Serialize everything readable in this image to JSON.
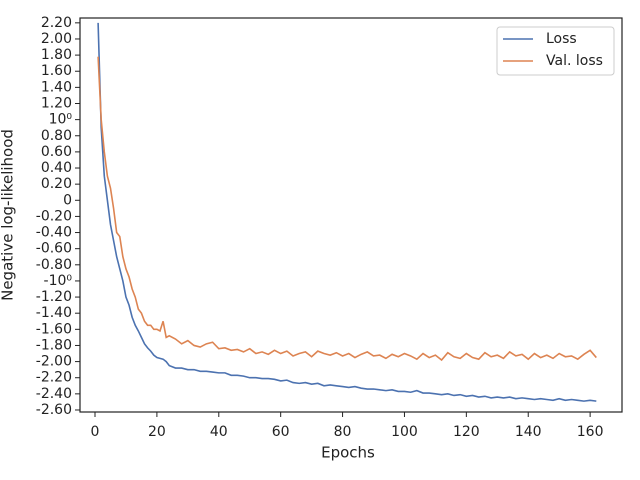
{
  "chart_data": {
    "type": "line",
    "xlabel": "Epochs",
    "ylabel": "Negative log-likelihood",
    "x": [
      1,
      2,
      3,
      4,
      5,
      6,
      7,
      8,
      9,
      10,
      11,
      12,
      13,
      14,
      15,
      16,
      17,
      18,
      19,
      20,
      21,
      22,
      23,
      24,
      26,
      28,
      30,
      32,
      34,
      36,
      38,
      40,
      42,
      44,
      46,
      48,
      50,
      52,
      54,
      56,
      58,
      60,
      62,
      64,
      66,
      68,
      70,
      72,
      74,
      76,
      78,
      80,
      82,
      84,
      86,
      88,
      90,
      92,
      94,
      96,
      98,
      100,
      102,
      104,
      106,
      108,
      110,
      112,
      114,
      116,
      118,
      120,
      122,
      124,
      126,
      128,
      130,
      132,
      134,
      136,
      138,
      140,
      142,
      144,
      146,
      148,
      150,
      152,
      154,
      156,
      158,
      160,
      162
    ],
    "series": [
      {
        "name": "Loss",
        "color": "#4c72b0",
        "values": [
          2.2,
          0.9,
          0.3,
          0.0,
          -0.3,
          -0.5,
          -0.7,
          -0.85,
          -1.0,
          -1.2,
          -1.3,
          -1.45,
          -1.55,
          -1.62,
          -1.7,
          -1.78,
          -1.83,
          -1.87,
          -1.92,
          -1.95,
          -1.96,
          -1.97,
          -2.0,
          -2.05,
          -2.08,
          -2.08,
          -2.1,
          -2.1,
          -2.12,
          -2.12,
          -2.13,
          -2.14,
          -2.14,
          -2.17,
          -2.17,
          -2.18,
          -2.2,
          -2.2,
          -2.21,
          -2.21,
          -2.22,
          -2.24,
          -2.23,
          -2.26,
          -2.27,
          -2.26,
          -2.28,
          -2.27,
          -2.3,
          -2.29,
          -2.3,
          -2.31,
          -2.32,
          -2.31,
          -2.33,
          -2.34,
          -2.34,
          -2.35,
          -2.36,
          -2.35,
          -2.37,
          -2.37,
          -2.38,
          -2.36,
          -2.39,
          -2.39,
          -2.4,
          -2.41,
          -2.4,
          -2.42,
          -2.41,
          -2.43,
          -2.42,
          -2.44,
          -2.43,
          -2.45,
          -2.44,
          -2.45,
          -2.44,
          -2.46,
          -2.45,
          -2.46,
          -2.47,
          -2.46,
          -2.47,
          -2.48,
          -2.46,
          -2.48,
          -2.47,
          -2.48,
          -2.49,
          -2.48,
          -2.49
        ]
      },
      {
        "name": "Val. loss",
        "color": "#dd8452",
        "values": [
          1.78,
          1.0,
          0.6,
          0.3,
          0.15,
          -0.1,
          -0.4,
          -0.45,
          -0.7,
          -0.85,
          -0.95,
          -1.1,
          -1.2,
          -1.35,
          -1.4,
          -1.5,
          -1.55,
          -1.55,
          -1.6,
          -1.6,
          -1.62,
          -1.5,
          -1.7,
          -1.68,
          -1.72,
          -1.78,
          -1.74,
          -1.8,
          -1.82,
          -1.78,
          -1.76,
          -1.84,
          -1.83,
          -1.86,
          -1.85,
          -1.88,
          -1.84,
          -1.9,
          -1.88,
          -1.91,
          -1.86,
          -1.9,
          -1.87,
          -1.93,
          -1.9,
          -1.88,
          -1.94,
          -1.87,
          -1.9,
          -1.92,
          -1.89,
          -1.93,
          -1.9,
          -1.95,
          -1.91,
          -1.88,
          -1.93,
          -1.92,
          -1.96,
          -1.91,
          -1.94,
          -1.9,
          -1.93,
          -1.97,
          -1.9,
          -1.95,
          -1.92,
          -1.98,
          -1.89,
          -1.94,
          -1.96,
          -1.9,
          -1.95,
          -1.97,
          -1.89,
          -1.94,
          -1.92,
          -1.96,
          -1.88,
          -1.93,
          -1.91,
          -1.97,
          -1.9,
          -1.95,
          -1.92,
          -1.96,
          -1.9,
          -1.94,
          -1.93,
          -1.97,
          -1.91,
          -1.86,
          -1.95
        ]
      }
    ],
    "xlim": [
      -4.85,
      170.3
    ],
    "xticks": [
      0,
      20,
      40,
      60,
      80,
      100,
      120,
      140,
      160
    ],
    "ylim": [
      -2.625,
      2.26
    ],
    "yticks": [
      {
        "value": 2.2,
        "label": "2.20"
      },
      {
        "value": 2.0,
        "label": "2.00"
      },
      {
        "value": 1.8,
        "label": "1.80"
      },
      {
        "value": 1.6,
        "label": "1.60"
      },
      {
        "value": 1.4,
        "label": "1.40"
      },
      {
        "value": 1.2,
        "label": "1.20"
      },
      {
        "value": 1,
        "label": "10⁰"
      },
      {
        "value": 0.8,
        "label": "0.80"
      },
      {
        "value": 0.6,
        "label": "0.60"
      },
      {
        "value": 0.4,
        "label": "0.40"
      },
      {
        "value": 0.2,
        "label": "0.20"
      },
      0,
      {
        "value": -0.2,
        "label": "-0.20"
      },
      {
        "value": -0.4,
        "label": "-0.40"
      },
      {
        "value": -0.6,
        "label": "-0.60"
      },
      {
        "value": -0.8,
        "label": "-0.80"
      },
      {
        "value": -1,
        "label": "-10⁰"
      },
      {
        "value": -1.2,
        "label": "-1.20"
      },
      {
        "value": -1.4,
        "label": "-1.40"
      },
      {
        "value": -1.6,
        "label": "-1.60"
      },
      {
        "value": -1.8,
        "label": "-1.80"
      },
      {
        "value": -2.0,
        "label": "-2.00"
      },
      {
        "value": -2.2,
        "label": "-2.20"
      },
      {
        "value": -2.4,
        "label": "-2.40"
      },
      {
        "value": -2.6,
        "label": "-2.60"
      }
    ],
    "legend": "upper right"
  }
}
